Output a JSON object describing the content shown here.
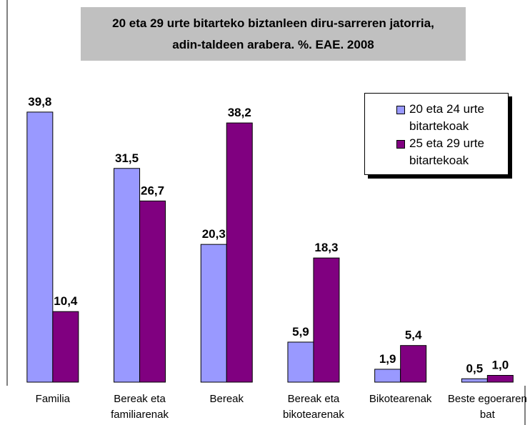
{
  "chart_data": {
    "type": "bar",
    "title": "20 eta 29 urte bitarteko biztanleen diru-sarreren jatorria, adin-taldeen arabera. %. EAE. 2008",
    "categories": [
      "Familia",
      "Bereak eta familiarenak",
      "Bereak",
      "Bereak eta bikotearenak",
      "Bikotearenak",
      "Beste egoeraren bat"
    ],
    "series": [
      {
        "name": "20 eta 24 urte bitartekoak",
        "color": "#9999ff",
        "values": [
          39.8,
          31.5,
          20.3,
          5.9,
          1.9,
          0.5
        ],
        "value_labels": [
          "39,8",
          "31,5",
          "20,3",
          "5,9",
          "1,9",
          "0,5"
        ]
      },
      {
        "name": "25 eta 29 urte bitartekoak",
        "color": "#800080",
        "values": [
          10.4,
          26.7,
          38.2,
          18.3,
          5.4,
          1.0
        ],
        "value_labels": [
          "10,4",
          "26,7",
          "38,2",
          "18,3",
          "5,4",
          "1,0"
        ]
      }
    ],
    "ylim": [
      0,
      40
    ],
    "legend": "top-right"
  }
}
